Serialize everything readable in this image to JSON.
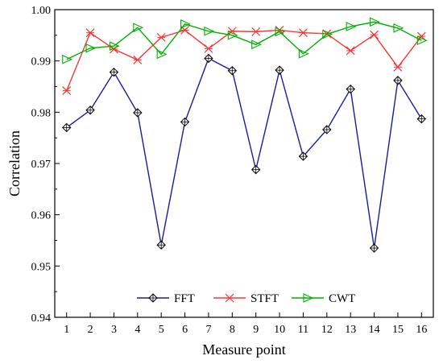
{
  "chart_data": {
    "type": "line",
    "title": "",
    "xlabel": "Measure point",
    "ylabel": "Correlation",
    "x": [
      1,
      2,
      3,
      4,
      5,
      6,
      7,
      8,
      9,
      10,
      11,
      12,
      13,
      14,
      15,
      16
    ],
    "xlim": [
      0.5,
      16.5
    ],
    "ylim": [
      0.94,
      1.0
    ],
    "yticks": [
      0.94,
      0.95,
      0.96,
      0.97,
      0.98,
      0.99,
      1.0
    ],
    "ytick_labels": [
      "0.94",
      "0.95",
      "0.96",
      "0.97",
      "0.98",
      "0.99",
      "1.00"
    ],
    "xtick_labels": [
      "1",
      "2",
      "3",
      "4",
      "5",
      "6",
      "7",
      "8",
      "9",
      "10",
      "11",
      "12",
      "13",
      "14",
      "15",
      "16"
    ],
    "grid": false,
    "legend_position": "bottom-center",
    "series": [
      {
        "name": "FFT",
        "color": "#1a1aa0",
        "marker": "diamond",
        "values": [
          0.977,
          0.9804,
          0.9878,
          0.9799,
          0.9541,
          0.9781,
          0.9905,
          0.9881,
          0.9688,
          0.9882,
          0.9714,
          0.9766,
          0.9845,
          0.9535,
          0.9862,
          0.9787
        ]
      },
      {
        "name": "STFT",
        "color": "#ff3333",
        "marker": "x",
        "values": [
          0.9842,
          0.9955,
          0.9923,
          0.9902,
          0.9946,
          0.996,
          0.9924,
          0.9958,
          0.9957,
          0.996,
          0.9955,
          0.9953,
          0.992,
          0.9951,
          0.9888,
          0.9948
        ]
      },
      {
        "name": "CWT",
        "color": "#00b000",
        "marker": "triangle-right",
        "values": [
          0.9903,
          0.9925,
          0.9929,
          0.9965,
          0.9913,
          0.9972,
          0.9958,
          0.995,
          0.9932,
          0.9957,
          0.9914,
          0.9952,
          0.9967,
          0.9976,
          0.9964,
          0.994
        ]
      }
    ]
  }
}
